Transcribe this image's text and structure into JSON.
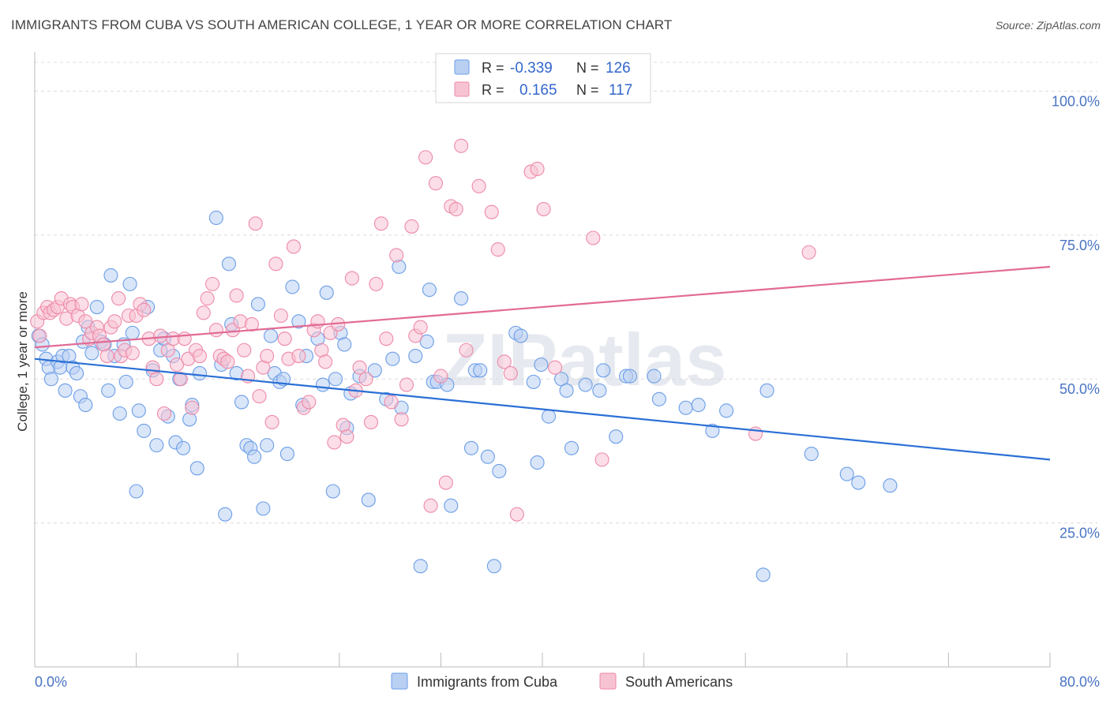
{
  "title": "IMMIGRANTS FROM CUBA VS SOUTH AMERICAN COLLEGE, 1 YEAR OR MORE CORRELATION CHART",
  "source": "Source: ZipAtlas.com",
  "watermark": "ZIPatlas",
  "colors": {
    "cuba": "#6b9ee8",
    "cuba_fill": "#b9d0f3",
    "south": "#ee8aa8",
    "south_fill": "#f7c3d3",
    "cuba_line": "#2a6fd6",
    "south_line": "#e26a94"
  },
  "legend": {
    "r_label": "R =",
    "n_label": "N =",
    "cuba": {
      "r": "-0.339",
      "n": "126"
    },
    "south": {
      "r": "0.165",
      "n": "117"
    }
  },
  "chart_data": {
    "type": "scatter",
    "title": "IMMIGRANTS FROM CUBA VS SOUTH AMERICAN COLLEGE, 1 YEAR OR MORE CORRELATION CHART",
    "xlabel": "",
    "ylabel": "College, 1 year or more",
    "xlim": [
      0,
      80
    ],
    "ylim": [
      0,
      105
    ],
    "x_tick_labels": [
      "0.0%",
      "80.0%"
    ],
    "y_ticks": [
      25,
      50,
      75,
      100
    ],
    "y_tick_labels": [
      "25.0%",
      "50.0%",
      "75.0%",
      "100.0%"
    ],
    "grid": "horizontal dashed",
    "legend_placement": "top-center and bottom",
    "series": [
      {
        "name": "Immigrants from Cuba",
        "r": -0.339,
        "n": 126,
        "trend": {
          "x": [
            0,
            80
          ],
          "y": [
            53.5,
            36.0
          ]
        },
        "points": [
          [
            0.3,
            57.5
          ],
          [
            0.6,
            56.0
          ],
          [
            0.9,
            53.5
          ],
          [
            1.1,
            52.0
          ],
          [
            1.3,
            50.0
          ],
          [
            1.8,
            53.0
          ],
          [
            2.0,
            52.0
          ],
          [
            2.2,
            54.0
          ],
          [
            2.4,
            48.0
          ],
          [
            2.7,
            54.0
          ],
          [
            3.0,
            52.0
          ],
          [
            3.3,
            51.0
          ],
          [
            3.6,
            47.0
          ],
          [
            3.8,
            56.5
          ],
          [
            4.0,
            45.5
          ],
          [
            4.2,
            59.0
          ],
          [
            4.5,
            54.5
          ],
          [
            4.9,
            62.5
          ],
          [
            5.2,
            56.5
          ],
          [
            5.5,
            56.0
          ],
          [
            5.8,
            48.0
          ],
          [
            6.0,
            68.0
          ],
          [
            6.3,
            54.0
          ],
          [
            6.7,
            44.0
          ],
          [
            7.0,
            56.0
          ],
          [
            7.2,
            49.5
          ],
          [
            7.5,
            66.5
          ],
          [
            7.7,
            58.0
          ],
          [
            8.0,
            30.5
          ],
          [
            8.2,
            44.5
          ],
          [
            8.6,
            41.0
          ],
          [
            8.9,
            62.5
          ],
          [
            9.3,
            51.5
          ],
          [
            9.6,
            38.5
          ],
          [
            9.9,
            55.0
          ],
          [
            10.2,
            57.0
          ],
          [
            10.5,
            43.5
          ],
          [
            10.9,
            54.0
          ],
          [
            11.1,
            39.0
          ],
          [
            11.4,
            50.0
          ],
          [
            11.7,
            38.0
          ],
          [
            12.2,
            43.0
          ],
          [
            12.4,
            45.5
          ],
          [
            12.8,
            34.5
          ],
          [
            13.0,
            51.0
          ],
          [
            14.3,
            78.0
          ],
          [
            14.7,
            52.5
          ],
          [
            15.0,
            26.5
          ],
          [
            15.3,
            70.0
          ],
          [
            15.5,
            59.5
          ],
          [
            15.9,
            51.0
          ],
          [
            16.3,
            46.0
          ],
          [
            16.7,
            38.5
          ],
          [
            17.0,
            38.0
          ],
          [
            17.3,
            36.5
          ],
          [
            17.6,
            63.0
          ],
          [
            18.0,
            27.5
          ],
          [
            18.3,
            38.5
          ],
          [
            18.6,
            57.5
          ],
          [
            18.9,
            51.0
          ],
          [
            19.3,
            49.5
          ],
          [
            19.6,
            50.0
          ],
          [
            19.9,
            37.0
          ],
          [
            20.3,
            66.0
          ],
          [
            20.8,
            60.0
          ],
          [
            21.1,
            45.5
          ],
          [
            21.4,
            54.0
          ],
          [
            22.3,
            57.0
          ],
          [
            22.7,
            49.0
          ],
          [
            23.0,
            65.0
          ],
          [
            23.5,
            30.5
          ],
          [
            23.7,
            50.0
          ],
          [
            24.1,
            58.0
          ],
          [
            24.4,
            56.0
          ],
          [
            24.6,
            41.5
          ],
          [
            24.9,
            47.5
          ],
          [
            25.6,
            50.5
          ],
          [
            26.3,
            29.0
          ],
          [
            26.8,
            51.5
          ],
          [
            27.7,
            46.5
          ],
          [
            28.2,
            53.5
          ],
          [
            28.7,
            69.5
          ],
          [
            28.9,
            45.0
          ],
          [
            30.0,
            54.0
          ],
          [
            30.4,
            17.5
          ],
          [
            30.9,
            56.5
          ],
          [
            31.1,
            65.5
          ],
          [
            31.4,
            49.5
          ],
          [
            31.7,
            49.5
          ],
          [
            32.5,
            49.0
          ],
          [
            32.8,
            28.0
          ],
          [
            33.6,
            64.0
          ],
          [
            34.4,
            38.0
          ],
          [
            34.7,
            51.5
          ],
          [
            35.1,
            51.5
          ],
          [
            35.7,
            36.5
          ],
          [
            36.2,
            17.5
          ],
          [
            36.6,
            34.0
          ],
          [
            37.9,
            58.0
          ],
          [
            38.3,
            57.5
          ],
          [
            39.3,
            49.5
          ],
          [
            39.6,
            35.5
          ],
          [
            39.9,
            52.5
          ],
          [
            40.5,
            43.5
          ],
          [
            41.5,
            50.0
          ],
          [
            41.9,
            48.0
          ],
          [
            42.3,
            38.0
          ],
          [
            43.4,
            49.0
          ],
          [
            44.5,
            48.0
          ],
          [
            44.8,
            51.5
          ],
          [
            45.8,
            40.0
          ],
          [
            46.6,
            50.5
          ],
          [
            46.9,
            50.5
          ],
          [
            48.8,
            50.5
          ],
          [
            49.2,
            46.5
          ],
          [
            51.3,
            45.0
          ],
          [
            52.3,
            45.5
          ],
          [
            53.4,
            41.0
          ],
          [
            54.5,
            44.5
          ],
          [
            57.4,
            16.0
          ],
          [
            57.7,
            48.0
          ],
          [
            61.2,
            37.0
          ],
          [
            64.0,
            33.5
          ],
          [
            64.9,
            32.0
          ],
          [
            67.4,
            31.5
          ]
        ]
      },
      {
        "name": "South Americans",
        "r": 0.165,
        "n": 117,
        "trend": {
          "x": [
            0,
            80
          ],
          "y": [
            55.5,
            69.5
          ]
        },
        "points": [
          [
            0.2,
            60.0
          ],
          [
            0.4,
            57.5
          ],
          [
            0.7,
            61.5
          ],
          [
            1.0,
            62.5
          ],
          [
            1.2,
            61.5
          ],
          [
            1.5,
            62.0
          ],
          [
            1.8,
            62.5
          ],
          [
            2.1,
            64.0
          ],
          [
            2.5,
            60.5
          ],
          [
            2.8,
            63.0
          ],
          [
            3.0,
            62.5
          ],
          [
            3.4,
            61.0
          ],
          [
            3.7,
            63.0
          ],
          [
            4.0,
            60.0
          ],
          [
            4.3,
            57.0
          ],
          [
            4.5,
            58.0
          ],
          [
            4.9,
            59.0
          ],
          [
            5.1,
            57.5
          ],
          [
            5.4,
            56.0
          ],
          [
            5.7,
            54.0
          ],
          [
            6.0,
            59.0
          ],
          [
            6.3,
            60.0
          ],
          [
            6.6,
            64.0
          ],
          [
            6.8,
            54.0
          ],
          [
            7.1,
            55.0
          ],
          [
            7.4,
            61.0
          ],
          [
            7.7,
            54.5
          ],
          [
            8.0,
            61.0
          ],
          [
            8.3,
            63.0
          ],
          [
            8.6,
            62.0
          ],
          [
            9.0,
            57.0
          ],
          [
            9.3,
            52.0
          ],
          [
            9.6,
            50.0
          ],
          [
            9.9,
            57.5
          ],
          [
            10.2,
            44.0
          ],
          [
            10.5,
            55.0
          ],
          [
            10.9,
            57.0
          ],
          [
            11.2,
            52.5
          ],
          [
            11.5,
            50.0
          ],
          [
            11.8,
            57.0
          ],
          [
            12.1,
            53.5
          ],
          [
            12.4,
            45.0
          ],
          [
            12.7,
            55.0
          ],
          [
            13.0,
            54.0
          ],
          [
            13.3,
            61.5
          ],
          [
            13.6,
            64.0
          ],
          [
            14.0,
            66.5
          ],
          [
            14.3,
            58.5
          ],
          [
            14.6,
            54.0
          ],
          [
            14.9,
            53.5
          ],
          [
            15.2,
            53.0
          ],
          [
            15.6,
            58.5
          ],
          [
            15.9,
            64.5
          ],
          [
            16.2,
            60.0
          ],
          [
            16.5,
            55.0
          ],
          [
            16.8,
            50.5
          ],
          [
            17.1,
            59.5
          ],
          [
            17.4,
            77.0
          ],
          [
            17.7,
            47.0
          ],
          [
            18.0,
            52.0
          ],
          [
            18.3,
            54.0
          ],
          [
            18.7,
            42.5
          ],
          [
            19.0,
            70.0
          ],
          [
            19.4,
            61.0
          ],
          [
            19.7,
            57.0
          ],
          [
            20.0,
            53.5
          ],
          [
            20.4,
            73.0
          ],
          [
            20.8,
            54.0
          ],
          [
            21.2,
            45.0
          ],
          [
            21.6,
            46.0
          ],
          [
            22.0,
            58.5
          ],
          [
            22.3,
            60.0
          ],
          [
            22.6,
            55.0
          ],
          [
            22.9,
            53.0
          ],
          [
            23.3,
            58.0
          ],
          [
            23.6,
            39.0
          ],
          [
            23.9,
            59.5
          ],
          [
            24.3,
            42.0
          ],
          [
            24.6,
            40.0
          ],
          [
            25.0,
            67.5
          ],
          [
            25.3,
            48.0
          ],
          [
            25.6,
            52.0
          ],
          [
            26.1,
            50.0
          ],
          [
            26.5,
            42.5
          ],
          [
            26.9,
            66.5
          ],
          [
            27.3,
            77.0
          ],
          [
            27.7,
            57.0
          ],
          [
            28.1,
            46.0
          ],
          [
            28.5,
            71.5
          ],
          [
            28.9,
            43.0
          ],
          [
            29.3,
            49.0
          ],
          [
            29.7,
            76.5
          ],
          [
            30.0,
            57.5
          ],
          [
            30.4,
            59.0
          ],
          [
            30.8,
            88.5
          ],
          [
            31.2,
            28.0
          ],
          [
            31.6,
            84.0
          ],
          [
            32.0,
            50.5
          ],
          [
            32.4,
            32.0
          ],
          [
            32.8,
            80.0
          ],
          [
            33.2,
            79.5
          ],
          [
            33.6,
            90.5
          ],
          [
            34.0,
            55.0
          ],
          [
            35.0,
            83.5
          ],
          [
            35.5,
            101.0
          ],
          [
            36.0,
            79.0
          ],
          [
            36.5,
            72.5
          ],
          [
            37.0,
            53.0
          ],
          [
            37.5,
            51.0
          ],
          [
            38.0,
            26.5
          ],
          [
            39.1,
            86.0
          ],
          [
            39.6,
            86.5
          ],
          [
            40.1,
            79.5
          ],
          [
            41.0,
            52.0
          ],
          [
            44.0,
            74.5
          ],
          [
            44.7,
            36.0
          ],
          [
            61.0,
            72.0
          ],
          [
            56.8,
            40.5
          ]
        ]
      }
    ]
  }
}
